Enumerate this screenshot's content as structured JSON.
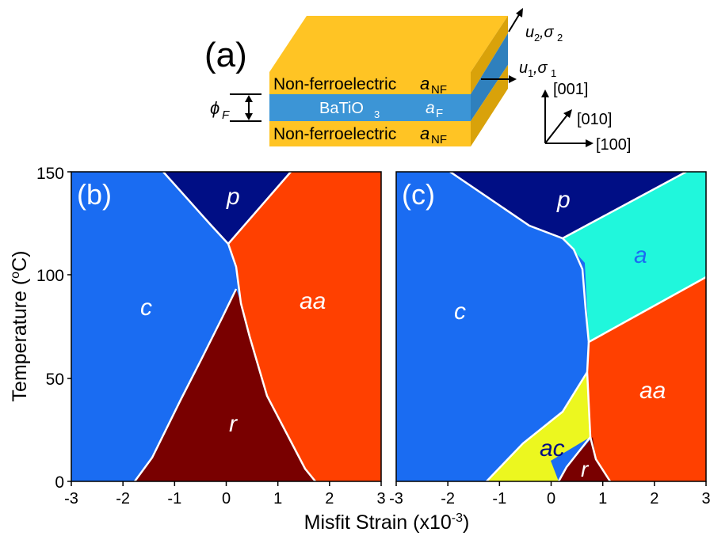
{
  "panel_a": {
    "label": "(a)",
    "top_layer": "Non-ferroelectric",
    "bottom_layer": "Non-ferroelectric",
    "lattice_nf": "a",
    "lattice_nf_sub": "NF",
    "film": "BaTiO",
    "film_sub": "3",
    "lattice_f": "a",
    "lattice_f_sub": "F",
    "thickness": "ϕ",
    "thickness_sub": "F",
    "u2_u": "u",
    "u2_sub": "2",
    "u2_sigma": ",σ",
    "u2_sigma_sub": "2",
    "u1_u": "u",
    "u1_sub": "1",
    "u1_sigma": ",σ",
    "u1_sigma_sub": "1",
    "axis_001": "[001]",
    "axis_010": "[010]",
    "axis_100": "[100]"
  },
  "panel_b": {
    "label": "(b)",
    "phases": {
      "p": "p",
      "c": "c",
      "aa": "aa",
      "r": "r"
    }
  },
  "panel_c": {
    "label": "(c)",
    "phases": {
      "p": "p",
      "a": "a",
      "c": "c",
      "aa": "aa",
      "ac": "ac",
      "r": "r"
    }
  },
  "axes": {
    "ylabel": "Temperature (",
    "ylabel_sup": "o",
    "ylabel_end": "C)",
    "xlabel": "Misfit Strain (x10",
    "xlabel_sup": "-3",
    "xlabel_end": ")",
    "yticks": [
      "0",
      "50",
      "100",
      "150"
    ],
    "xticks_b": [
      "-3",
      "-2",
      "-1",
      "0",
      "1",
      "2",
      "3"
    ],
    "xticks_c": [
      "-3",
      "-2",
      "-1",
      "0",
      "1",
      "2",
      "3"
    ],
    "xlim": [
      -3,
      3
    ],
    "ylim": [
      0,
      150
    ]
  },
  "colors": {
    "c_phase": "#1a6cf2",
    "p_phase": "#000e85",
    "aa_phase": "#ff4000",
    "r_phase": "#790000",
    "a_phase": "#20f7dc",
    "ac_phase": "#ecf71f",
    "top_face": "#ffc424",
    "side_face": "#d8a000",
    "film": "#3c95d6",
    "film_side": "#2878ae"
  }
}
